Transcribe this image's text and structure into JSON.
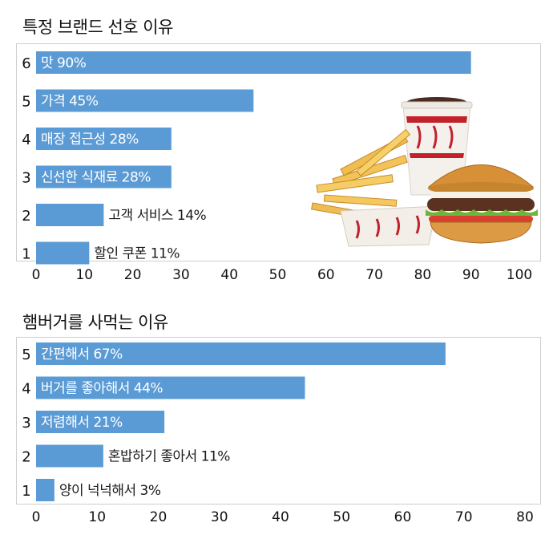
{
  "chart_data": [
    {
      "type": "bar",
      "orientation": "horizontal",
      "title": "특정 브랜드 선호 이유",
      "categories": [
        "6",
        "5",
        "4",
        "3",
        "2",
        "1"
      ],
      "labels": [
        "맛 90%",
        "가격 45%",
        "매장 접근성 28%",
        "신선한 식재료 28%",
        "고객 서비스 14%",
        "할인 쿠폰 11%"
      ],
      "values": [
        90,
        45,
        28,
        28,
        14,
        11
      ],
      "xlim": [
        0,
        100
      ],
      "xticks": [
        "0",
        "10",
        "20",
        "30",
        "40",
        "50",
        "60",
        "70",
        "80",
        "90",
        "100"
      ],
      "grid": false,
      "bar_color": "#5b9bd5"
    },
    {
      "type": "bar",
      "orientation": "horizontal",
      "title": "햄버거를 사먹는 이유",
      "categories": [
        "5",
        "4",
        "3",
        "2",
        "1"
      ],
      "labels": [
        "간편해서 67%",
        "버거를 좋아해서 44%",
        "저렴해서 21%",
        "혼밥하기 좋아서 11%",
        "양이 넉넉해서 3%"
      ],
      "values": [
        67,
        44,
        21,
        11,
        3
      ],
      "xlim": [
        0,
        80
      ],
      "xticks": [
        "0",
        "10",
        "20",
        "30",
        "40",
        "50",
        "60",
        "70",
        "80"
      ],
      "grid": false,
      "bar_color": "#5b9bd5"
    }
  ],
  "colors": {
    "bar": "#5b9bd5",
    "inside_label": "#ffffff",
    "outside_label": "#1a1a1a"
  }
}
